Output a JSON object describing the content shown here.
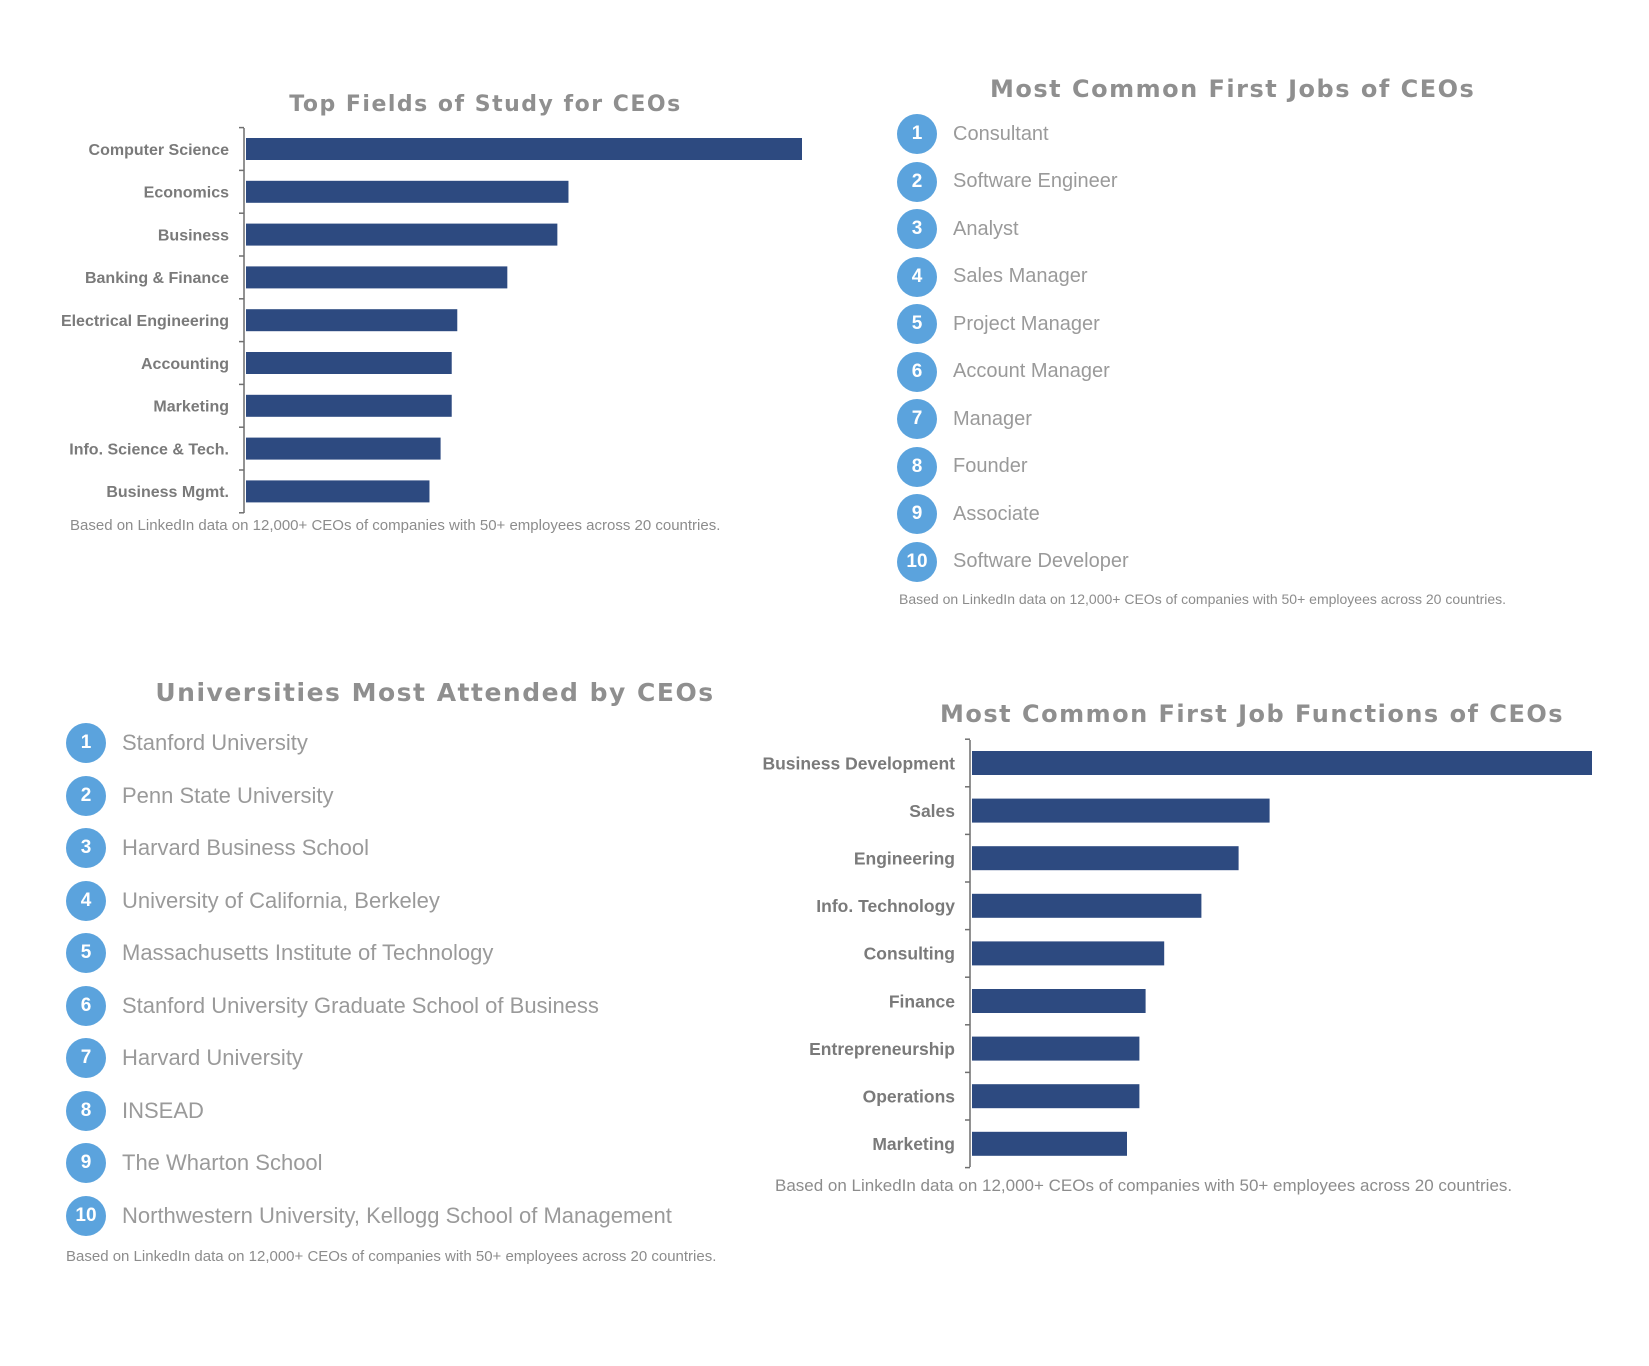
{
  "colors": {
    "bar": "#2d4a80",
    "badge": "#5ba3dd",
    "title": "#8f8f8f",
    "text": "#9a9a9a"
  },
  "fields_panel": {
    "title": "Top Fields of Study for CEOs",
    "note": "Based on LinkedIn data on 12,000+ CEOs of companies with 50+ employees across 20 countries."
  },
  "jobs_panel": {
    "title": "Most Common First Jobs of CEOs",
    "note": "Based on LinkedIn data on 12,000+ CEOs of companies with 50+ employees across 20 countries.",
    "items": [
      {
        "rank": "1",
        "label": "Consultant"
      },
      {
        "rank": "2",
        "label": "Software Engineer"
      },
      {
        "rank": "3",
        "label": "Analyst"
      },
      {
        "rank": "4",
        "label": "Sales Manager"
      },
      {
        "rank": "5",
        "label": "Project Manager"
      },
      {
        "rank": "6",
        "label": "Account Manager"
      },
      {
        "rank": "7",
        "label": "Manager"
      },
      {
        "rank": "8",
        "label": "Founder"
      },
      {
        "rank": "9",
        "label": "Associate"
      },
      {
        "rank": "10",
        "label": "Software Developer"
      }
    ]
  },
  "universities_panel": {
    "title": "Universities Most Attended by CEOs",
    "note": "Based on LinkedIn data on 12,000+ CEOs of companies with 50+ employees across 20 countries.",
    "items": [
      {
        "rank": "1",
        "label": "Stanford University"
      },
      {
        "rank": "2",
        "label": "Penn State University"
      },
      {
        "rank": "3",
        "label": "Harvard Business School"
      },
      {
        "rank": "4",
        "label": "University of California, Berkeley"
      },
      {
        "rank": "5",
        "label": "Massachusetts Institute of Technology"
      },
      {
        "rank": "6",
        "label": "Stanford University Graduate School of Business"
      },
      {
        "rank": "7",
        "label": "Harvard University"
      },
      {
        "rank": "8",
        "label": "INSEAD"
      },
      {
        "rank": "9",
        "label": "The Wharton School"
      },
      {
        "rank": "10",
        "label": "Northwestern University, Kellogg School of Management"
      }
    ]
  },
  "functions_panel": {
    "title": "Most Common First Job Functions of CEOs",
    "note": "Based on LinkedIn data on 12,000+ CEOs of companies with 50+ employees across 20 countries."
  },
  "chart_data": [
    {
      "type": "bar",
      "orientation": "horizontal",
      "title": "Top Fields of Study for CEOs",
      "categories": [
        "Computer Science",
        "Economics",
        "Business",
        "Banking & Finance",
        "Electrical Engineering",
        "Accounting",
        "Marketing",
        "Info. Science & Tech.",
        "Business Mgmt."
      ],
      "values": [
        100,
        58,
        56,
        47,
        38,
        37,
        37,
        35,
        33
      ],
      "xlim": [
        0,
        100
      ],
      "grid": false
    },
    {
      "type": "bar",
      "orientation": "horizontal",
      "title": "Most Common First Job Functions of CEOs",
      "categories": [
        "Business Development",
        "Sales",
        "Engineering",
        "Info. Technology",
        "Consulting",
        "Finance",
        "Entrepreneurship",
        "Operations",
        "Marketing"
      ],
      "values": [
        100,
        48,
        43,
        37,
        31,
        28,
        27,
        27,
        25
      ],
      "xlim": [
        0,
        100
      ],
      "grid": false
    }
  ]
}
